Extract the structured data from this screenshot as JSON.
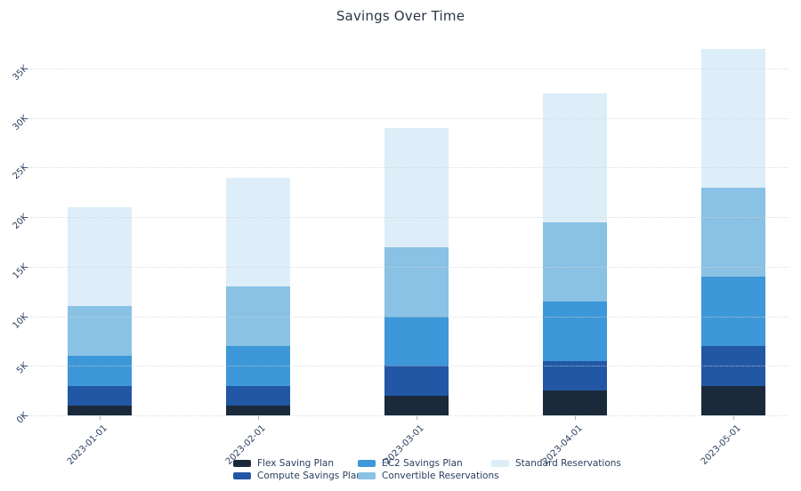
{
  "chart": {
    "title": "Savings Over Time"
  },
  "chart_data": {
    "type": "bar",
    "stacked": true,
    "orientation": "vertical",
    "title": "Savings Over Time",
    "xlabel": "",
    "ylabel": "",
    "categories": [
      "2023-01-01",
      "2023-02-01",
      "2023-03-01",
      "2023-04-01",
      "2023-05-01"
    ],
    "series": [
      {
        "name": "Flex Saving Plan",
        "color": "#1b2a3a",
        "values": [
          1000,
          1000,
          2000,
          2500,
          3000
        ]
      },
      {
        "name": "Compute Savings Plan",
        "color": "#2257a5",
        "values": [
          2000,
          2000,
          3000,
          3000,
          4000
        ]
      },
      {
        "name": "EC2 Savings Plan",
        "color": "#3d97d8",
        "values": [
          3000,
          4000,
          5000,
          6000,
          7000
        ]
      },
      {
        "name": "Convertible Reservations",
        "color": "#89c2e4",
        "values": [
          5000,
          6000,
          7000,
          8000,
          9000
        ]
      },
      {
        "name": "Standard Reservations",
        "color": "#ddeef9",
        "values": [
          10000,
          11000,
          12000,
          13000,
          14000
        ]
      }
    ],
    "totals": [
      21000,
      24000,
      29000,
      32500,
      37000
    ],
    "ylim": [
      0,
      37000
    ],
    "yticks": [
      0,
      5000,
      10000,
      15000,
      20000,
      25000,
      30000,
      35000
    ],
    "ytick_labels": [
      "0K",
      "5K",
      "10K",
      "15K",
      "20K",
      "25K",
      "30K",
      "35K"
    ],
    "grid": true,
    "gridline_style": "dotted",
    "tick_angle_deg": -45,
    "legend_position": "bottom",
    "legend_columns": [
      [
        0,
        1
      ],
      [
        2,
        3
      ],
      [
        4
      ]
    ],
    "colors": {
      "background": "#ffffff",
      "text": "#2a3f5f",
      "grid": "#ced4dc"
    }
  }
}
